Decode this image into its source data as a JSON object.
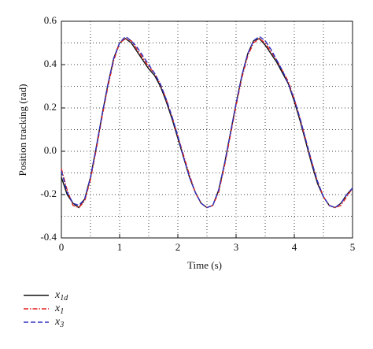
{
  "chart_data": {
    "type": "line",
    "xlabel": "Time (s)",
    "ylabel": "Position tracking (rad)",
    "x": [
      0,
      0.1,
      0.2,
      0.3,
      0.4,
      0.5,
      0.6,
      0.7,
      0.8,
      0.9,
      1,
      1.1,
      1.2,
      1.3,
      1.4,
      1.5,
      1.6,
      1.7,
      1.8,
      1.9,
      2,
      2.1,
      2.2,
      2.3,
      2.4,
      2.5,
      2.6,
      2.7,
      2.8,
      2.9,
      3,
      3.1,
      3.2,
      3.3,
      3.4,
      3.5,
      3.6,
      3.7,
      3.8,
      3.9,
      4,
      4.1,
      4.2,
      4.3,
      4.4,
      4.5,
      4.6,
      4.7,
      4.8,
      4.9,
      5
    ],
    "series": [
      {
        "name": "x1d",
        "color": "#111111",
        "dash": "solid",
        "values": [
          -0.12,
          -0.2,
          -0.24,
          -0.26,
          -0.22,
          -0.12,
          0.02,
          0.17,
          0.31,
          0.43,
          0.5,
          0.52,
          0.5,
          0.46,
          0.42,
          0.38,
          0.35,
          0.3,
          0.23,
          0.15,
          0.06,
          -0.03,
          -0.12,
          -0.19,
          -0.24,
          -0.26,
          -0.25,
          -0.18,
          -0.06,
          0.08,
          0.22,
          0.35,
          0.45,
          0.51,
          0.52,
          0.49,
          0.45,
          0.41,
          0.36,
          0.31,
          0.23,
          0.14,
          0.04,
          -0.06,
          -0.15,
          -0.21,
          -0.25,
          -0.26,
          -0.24,
          -0.2,
          -0.17
        ]
      },
      {
        "name": "x1",
        "color": "#e02020",
        "dash": "dashdot",
        "values": [
          -0.08,
          -0.18,
          -0.25,
          -0.26,
          -0.23,
          -0.13,
          0.01,
          0.16,
          0.3,
          0.42,
          0.5,
          0.52,
          0.51,
          0.47,
          0.43,
          0.39,
          0.36,
          0.31,
          0.24,
          0.16,
          0.07,
          -0.02,
          -0.11,
          -0.19,
          -0.24,
          -0.26,
          -0.25,
          -0.19,
          -0.07,
          0.07,
          0.21,
          0.34,
          0.44,
          0.5,
          0.52,
          0.5,
          0.46,
          0.42,
          0.37,
          0.32,
          0.24,
          0.15,
          0.05,
          -0.05,
          -0.14,
          -0.21,
          -0.25,
          -0.26,
          -0.25,
          -0.21,
          -0.17
        ]
      },
      {
        "name": "x3",
        "color": "#3030c0",
        "dash": "dashed",
        "values": [
          -0.09,
          -0.19,
          -0.24,
          -0.25,
          -0.22,
          -0.12,
          0.02,
          0.17,
          0.31,
          0.43,
          0.5,
          0.53,
          0.51,
          0.48,
          0.44,
          0.4,
          0.36,
          0.31,
          0.24,
          0.16,
          0.07,
          -0.03,
          -0.12,
          -0.19,
          -0.24,
          -0.26,
          -0.25,
          -0.18,
          -0.06,
          0.08,
          0.22,
          0.35,
          0.45,
          0.51,
          0.53,
          0.51,
          0.47,
          0.42,
          0.37,
          0.31,
          0.24,
          0.15,
          0.05,
          -0.05,
          -0.14,
          -0.21,
          -0.25,
          -0.26,
          -0.24,
          -0.2,
          -0.17
        ]
      }
    ],
    "xlim": [
      0,
      5
    ],
    "ylim": [
      -0.4,
      0.6
    ],
    "xticks": [
      0,
      1,
      2,
      3,
      4,
      5
    ],
    "yticks": [
      -0.4,
      -0.2,
      {
        "value": 0,
        "label": "0.0"
      },
      0.2,
      0.4,
      0.6
    ],
    "grid_x": [
      0.5,
      1,
      1.5,
      2,
      2.5,
      3,
      3.5,
      4,
      4.5
    ],
    "grid_y": [
      -0.3,
      -0.2,
      -0.1,
      0,
      0.1,
      0.2,
      0.3,
      0.4,
      0.5
    ],
    "grid": true
  }
}
